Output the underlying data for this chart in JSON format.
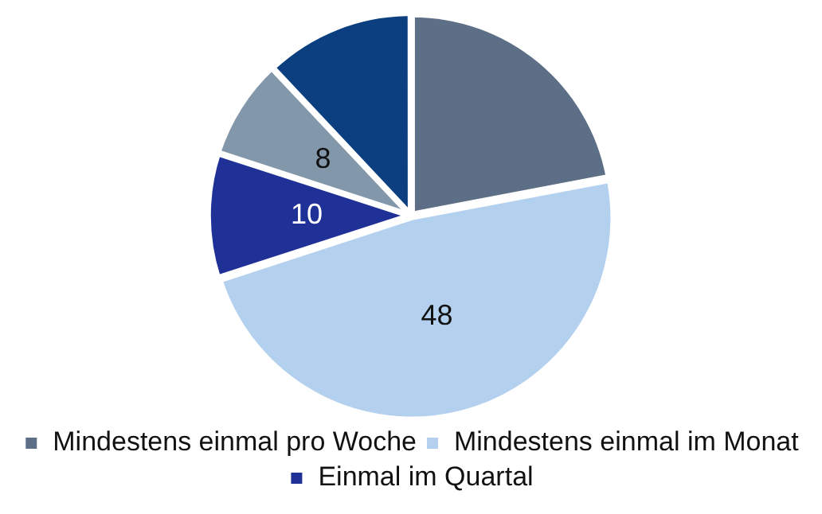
{
  "chart_data": {
    "type": "pie",
    "categories": [
      "Mindestens einmal pro Woche",
      "Mindestens einmal im Monat",
      "Einmal im Quartal",
      null,
      null
    ],
    "values": [
      22,
      48,
      10,
      8,
      12
    ],
    "colors": [
      "#5d6f86",
      "#b3d0ee",
      "#1f3197",
      "#8397ab",
      "#0b3f80"
    ],
    "value_labels": [
      null,
      "48",
      "10",
      "8",
      null
    ],
    "legend": "bottom"
  }
}
